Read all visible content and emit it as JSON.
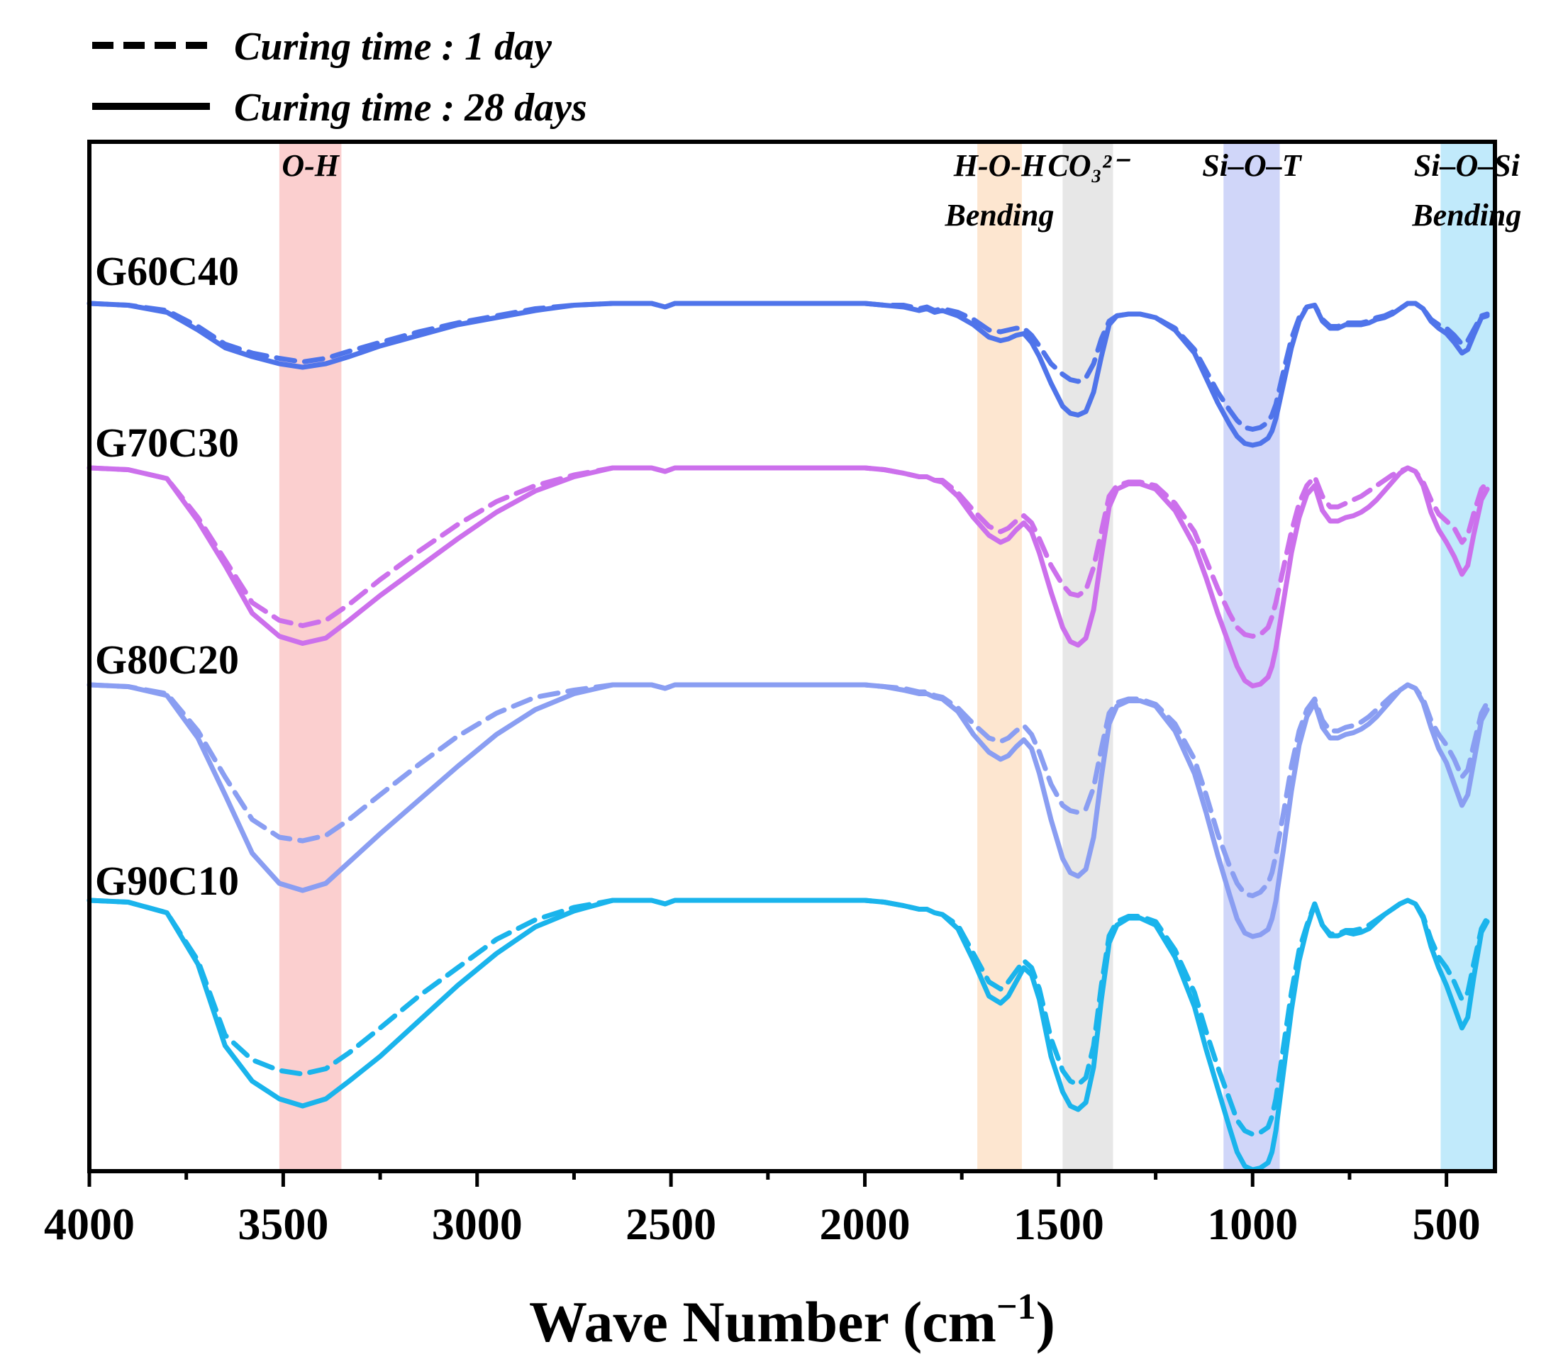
{
  "chart_data": {
    "type": "line",
    "title": "",
    "xlabel": "Wave Number (cm",
    "xlabel_unit_sup": "−1",
    "xlabel_close": ")",
    "ylabel": "",
    "xlim": [
      4000,
      375
    ],
    "x_reversed": true,
    "x_ticks": [
      4000,
      3500,
      3000,
      2500,
      2000,
      1500,
      1000,
      500
    ],
    "x_tick_labels": [
      "4000",
      "3500",
      "3000",
      "2500",
      "2000",
      "1500",
      "1000",
      "500"
    ],
    "y_ticks": false,
    "grid": false,
    "legend": {
      "placement": "top-left",
      "entries": [
        {
          "label": "Curing time : 1 day",
          "style": "dashed",
          "color": "#000000"
        },
        {
          "label": "Curing time : 28 days",
          "style": "solid",
          "color": "#000000"
        }
      ]
    },
    "bands": [
      {
        "label": "O-H",
        "label2": "",
        "from": 3510,
        "to": 3350,
        "color": "#f8a8a8"
      },
      {
        "label": "H-O-H",
        "label2": "Bending",
        "from": 1710,
        "to": 1595,
        "color": "#fbd2aa"
      },
      {
        "label": "CO₃²⁻",
        "label2": "",
        "from": 1490,
        "to": 1360,
        "color": "#d4d4d4"
      },
      {
        "label": "Si–O–T",
        "label2": "",
        "from": 1075,
        "to": 930,
        "color": "#aab4f4"
      },
      {
        "label": "Si–O–Si",
        "label2": "Bending",
        "from": 515,
        "to": 380,
        "color": "#8ed8f8"
      }
    ],
    "series_profile_x": [
      4000,
      3900,
      3800,
      3720,
      3650,
      3580,
      3510,
      3450,
      3390,
      3330,
      3250,
      3150,
      3050,
      2950,
      2850,
      2750,
      2650,
      2550,
      2515,
      2490,
      2400,
      2300,
      2200,
      2100,
      2000,
      1950,
      1900,
      1860,
      1840,
      1820,
      1800,
      1760,
      1720,
      1680,
      1650,
      1630,
      1610,
      1590,
      1570,
      1550,
      1520,
      1490,
      1470,
      1450,
      1430,
      1410,
      1390,
      1370,
      1350,
      1320,
      1290,
      1250,
      1200,
      1150,
      1120,
      1090,
      1060,
      1040,
      1020,
      1000,
      980,
      960,
      950,
      940,
      920,
      900,
      880,
      860,
      840,
      820,
      800,
      780,
      760,
      740,
      720,
      700,
      680,
      660,
      640,
      620,
      600,
      580,
      560,
      540,
      520,
      500,
      480,
      460,
      445,
      430,
      410,
      395
    ],
    "series": [
      {
        "name": "G60C40",
        "group": "G60C40",
        "style": "solid",
        "color": "#4f74ea",
        "y": [
          0.0,
          0.01,
          0.05,
          0.15,
          0.25,
          0.3,
          0.34,
          0.36,
          0.34,
          0.3,
          0.24,
          0.18,
          0.12,
          0.08,
          0.04,
          0.01,
          0.0,
          0.0,
          0.02,
          0.0,
          0.0,
          0.0,
          0.0,
          0.0,
          0.0,
          0.01,
          0.02,
          0.04,
          0.03,
          0.05,
          0.04,
          0.07,
          0.12,
          0.19,
          0.21,
          0.2,
          0.18,
          0.17,
          0.22,
          0.3,
          0.45,
          0.58,
          0.62,
          0.63,
          0.61,
          0.5,
          0.3,
          0.12,
          0.07,
          0.06,
          0.06,
          0.08,
          0.15,
          0.28,
          0.42,
          0.56,
          0.68,
          0.75,
          0.79,
          0.8,
          0.79,
          0.76,
          0.72,
          0.65,
          0.45,
          0.25,
          0.1,
          0.02,
          0.01,
          0.1,
          0.14,
          0.14,
          0.12,
          0.12,
          0.12,
          0.11,
          0.09,
          0.08,
          0.06,
          0.03,
          0.0,
          0.0,
          0.03,
          0.1,
          0.14,
          0.17,
          0.22,
          0.28,
          0.26,
          0.18,
          0.08,
          0.07
        ]
      },
      {
        "name": "",
        "group": "G60C40",
        "style": "dashed",
        "color": "#4f74ea",
        "y": [
          0.0,
          0.01,
          0.04,
          0.13,
          0.23,
          0.28,
          0.31,
          0.33,
          0.31,
          0.27,
          0.22,
          0.16,
          0.11,
          0.07,
          0.03,
          0.01,
          0.0,
          0.0,
          0.02,
          0.0,
          0.0,
          0.0,
          0.0,
          0.0,
          0.0,
          0.01,
          0.01,
          0.03,
          0.02,
          0.04,
          0.03,
          0.05,
          0.09,
          0.15,
          0.16,
          0.15,
          0.14,
          0.14,
          0.18,
          0.24,
          0.34,
          0.4,
          0.43,
          0.44,
          0.42,
          0.34,
          0.2,
          0.1,
          0.07,
          0.06,
          0.06,
          0.08,
          0.14,
          0.26,
          0.38,
          0.5,
          0.6,
          0.66,
          0.7,
          0.71,
          0.7,
          0.67,
          0.63,
          0.57,
          0.38,
          0.2,
          0.08,
          0.02,
          0.01,
          0.09,
          0.13,
          0.13,
          0.11,
          0.11,
          0.11,
          0.1,
          0.08,
          0.07,
          0.05,
          0.03,
          0.0,
          0.0,
          0.03,
          0.09,
          0.12,
          0.14,
          0.18,
          0.23,
          0.21,
          0.15,
          0.07,
          0.06
        ]
      },
      {
        "name": "G70C30",
        "group": "G70C30",
        "style": "solid",
        "color": "#cc70ec",
        "y": [
          0.0,
          0.01,
          0.06,
          0.3,
          0.55,
          0.82,
          0.95,
          0.99,
          0.96,
          0.86,
          0.72,
          0.56,
          0.4,
          0.25,
          0.13,
          0.05,
          0.0,
          0.0,
          0.02,
          0.0,
          0.0,
          0.0,
          0.0,
          0.0,
          0.0,
          0.01,
          0.03,
          0.05,
          0.05,
          0.07,
          0.08,
          0.16,
          0.28,
          0.38,
          0.42,
          0.4,
          0.35,
          0.31,
          0.36,
          0.48,
          0.7,
          0.9,
          0.98,
          1.0,
          0.96,
          0.8,
          0.5,
          0.22,
          0.12,
          0.09,
          0.09,
          0.12,
          0.24,
          0.44,
          0.62,
          0.82,
          1.0,
          1.12,
          1.2,
          1.23,
          1.22,
          1.18,
          1.12,
          1.02,
          0.75,
          0.48,
          0.28,
          0.15,
          0.1,
          0.24,
          0.3,
          0.3,
          0.28,
          0.27,
          0.25,
          0.22,
          0.18,
          0.13,
          0.08,
          0.03,
          0.0,
          0.02,
          0.1,
          0.25,
          0.35,
          0.42,
          0.5,
          0.6,
          0.55,
          0.38,
          0.18,
          0.12
        ]
      },
      {
        "name": "",
        "group": "G70C30",
        "style": "dashed",
        "color": "#cc70ec",
        "y": [
          0.0,
          0.01,
          0.06,
          0.28,
          0.52,
          0.76,
          0.86,
          0.89,
          0.86,
          0.77,
          0.63,
          0.47,
          0.32,
          0.19,
          0.1,
          0.04,
          0.0,
          0.0,
          0.02,
          0.0,
          0.0,
          0.0,
          0.0,
          0.0,
          0.0,
          0.01,
          0.03,
          0.05,
          0.05,
          0.07,
          0.07,
          0.14,
          0.24,
          0.33,
          0.36,
          0.34,
          0.3,
          0.27,
          0.31,
          0.4,
          0.55,
          0.66,
          0.71,
          0.72,
          0.69,
          0.56,
          0.36,
          0.16,
          0.1,
          0.08,
          0.08,
          0.1,
          0.2,
          0.36,
          0.52,
          0.68,
          0.82,
          0.9,
          0.94,
          0.95,
          0.94,
          0.9,
          0.84,
          0.76,
          0.56,
          0.36,
          0.2,
          0.1,
          0.05,
          0.16,
          0.22,
          0.22,
          0.2,
          0.18,
          0.16,
          0.13,
          0.1,
          0.07,
          0.04,
          0.02,
          0.0,
          0.02,
          0.08,
          0.18,
          0.26,
          0.3,
          0.34,
          0.42,
          0.38,
          0.26,
          0.12,
          0.08
        ]
      },
      {
        "name": "G80C20",
        "group": "G80C20",
        "style": "solid",
        "color": "#8a9ef2",
        "y": [
          0.0,
          0.01,
          0.06,
          0.3,
          0.62,
          0.95,
          1.12,
          1.16,
          1.12,
          1.0,
          0.84,
          0.65,
          0.46,
          0.28,
          0.14,
          0.05,
          0.0,
          0.0,
          0.02,
          0.0,
          0.0,
          0.0,
          0.0,
          0.0,
          0.0,
          0.01,
          0.03,
          0.05,
          0.05,
          0.07,
          0.08,
          0.15,
          0.28,
          0.38,
          0.42,
          0.4,
          0.35,
          0.31,
          0.36,
          0.5,
          0.76,
          0.98,
          1.06,
          1.08,
          1.04,
          0.86,
          0.52,
          0.22,
          0.12,
          0.09,
          0.09,
          0.12,
          0.26,
          0.5,
          0.72,
          0.96,
          1.18,
          1.32,
          1.4,
          1.42,
          1.41,
          1.38,
          1.32,
          1.22,
          0.92,
          0.6,
          0.34,
          0.18,
          0.1,
          0.24,
          0.3,
          0.3,
          0.28,
          0.27,
          0.25,
          0.22,
          0.18,
          0.13,
          0.08,
          0.03,
          0.0,
          0.02,
          0.1,
          0.24,
          0.36,
          0.44,
          0.56,
          0.68,
          0.62,
          0.44,
          0.2,
          0.14
        ]
      },
      {
        "name": "",
        "group": "G80C20",
        "style": "dashed",
        "color": "#8a9ef2",
        "y": [
          0.0,
          0.01,
          0.05,
          0.26,
          0.52,
          0.76,
          0.86,
          0.88,
          0.85,
          0.76,
          0.62,
          0.45,
          0.29,
          0.16,
          0.07,
          0.03,
          0.0,
          0.0,
          0.02,
          0.0,
          0.0,
          0.0,
          0.0,
          0.0,
          0.0,
          0.01,
          0.02,
          0.04,
          0.04,
          0.06,
          0.07,
          0.13,
          0.22,
          0.3,
          0.32,
          0.3,
          0.26,
          0.23,
          0.28,
          0.38,
          0.56,
          0.68,
          0.71,
          0.72,
          0.7,
          0.58,
          0.36,
          0.16,
          0.1,
          0.08,
          0.08,
          0.11,
          0.22,
          0.42,
          0.62,
          0.84,
          1.02,
          1.12,
          1.18,
          1.19,
          1.17,
          1.12,
          1.06,
          0.96,
          0.72,
          0.46,
          0.26,
          0.14,
          0.08,
          0.2,
          0.26,
          0.26,
          0.24,
          0.23,
          0.21,
          0.18,
          0.14,
          0.1,
          0.06,
          0.03,
          0.0,
          0.02,
          0.08,
          0.2,
          0.28,
          0.34,
          0.42,
          0.52,
          0.48,
          0.34,
          0.16,
          0.1
        ]
      },
      {
        "name": "G90C10",
        "group": "G90C10",
        "style": "solid",
        "color": "#1ab4ec",
        "y": [
          0.0,
          0.01,
          0.07,
          0.36,
          0.82,
          1.02,
          1.12,
          1.16,
          1.12,
          1.02,
          0.88,
          0.68,
          0.48,
          0.3,
          0.15,
          0.06,
          0.0,
          0.0,
          0.02,
          0.0,
          0.0,
          0.0,
          0.0,
          0.0,
          0.0,
          0.01,
          0.03,
          0.05,
          0.05,
          0.07,
          0.08,
          0.16,
          0.34,
          0.54,
          0.58,
          0.54,
          0.46,
          0.38,
          0.42,
          0.56,
          0.88,
          1.08,
          1.16,
          1.18,
          1.14,
          0.94,
          0.56,
          0.24,
          0.14,
          0.1,
          0.1,
          0.14,
          0.32,
          0.6,
          0.84,
          1.06,
          1.28,
          1.42,
          1.5,
          1.52,
          1.51,
          1.48,
          1.42,
          1.3,
          0.96,
          0.62,
          0.34,
          0.16,
          0.02,
          0.14,
          0.2,
          0.2,
          0.18,
          0.19,
          0.18,
          0.16,
          0.12,
          0.08,
          0.05,
          0.02,
          0.0,
          0.02,
          0.1,
          0.26,
          0.38,
          0.48,
          0.6,
          0.72,
          0.66,
          0.44,
          0.18,
          0.12
        ]
      },
      {
        "name": "",
        "group": "G90C10",
        "style": "dashed",
        "color": "#1ab4ec",
        "y": [
          0.0,
          0.01,
          0.07,
          0.34,
          0.76,
          0.9,
          0.96,
          0.98,
          0.95,
          0.86,
          0.72,
          0.54,
          0.38,
          0.22,
          0.11,
          0.04,
          0.0,
          0.0,
          0.02,
          0.0,
          0.0,
          0.0,
          0.0,
          0.0,
          0.0,
          0.01,
          0.03,
          0.05,
          0.05,
          0.07,
          0.08,
          0.14,
          0.3,
          0.46,
          0.5,
          0.46,
          0.4,
          0.34,
          0.38,
          0.5,
          0.78,
          0.96,
          1.02,
          1.04,
          1.0,
          0.82,
          0.48,
          0.2,
          0.12,
          0.09,
          0.09,
          0.12,
          0.28,
          0.52,
          0.74,
          0.94,
          1.12,
          1.24,
          1.3,
          1.32,
          1.31,
          1.28,
          1.22,
          1.12,
          0.82,
          0.52,
          0.28,
          0.14,
          0.02,
          0.14,
          0.19,
          0.19,
          0.17,
          0.17,
          0.16,
          0.14,
          0.11,
          0.08,
          0.05,
          0.02,
          0.0,
          0.02,
          0.09,
          0.22,
          0.32,
          0.38,
          0.46,
          0.56,
          0.52,
          0.36,
          0.16,
          0.1
        ]
      }
    ]
  }
}
